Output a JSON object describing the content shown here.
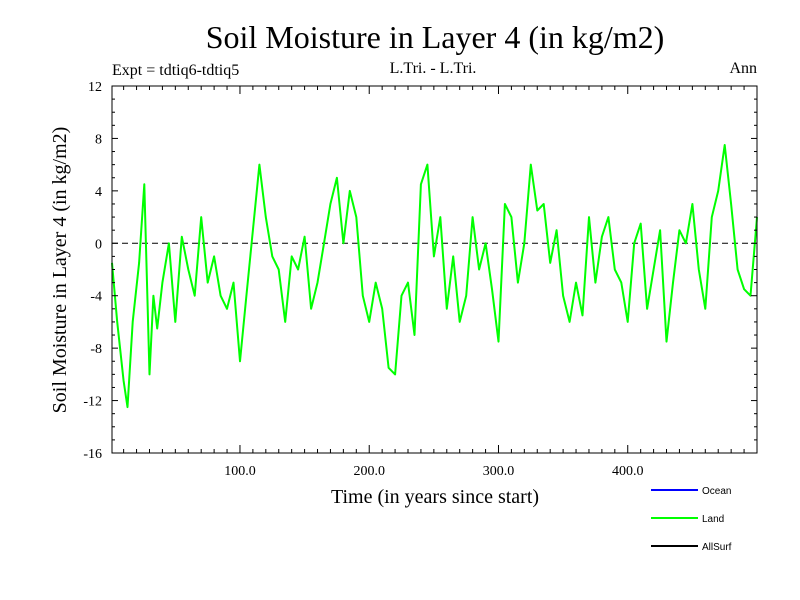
{
  "chart_data": {
    "type": "line",
    "title": "Soil Moisture in Layer 4 (in kg/m2)",
    "subtitle_left": "Expt = tdtiq6-tdtiq5",
    "subtitle_center": "L.Tri. - L.Tri.",
    "subtitle_right": "Ann",
    "xlabel": "Time (in years since start)",
    "ylabel": "Soil Moisture in Layer 4 (in kg/m2)",
    "xlim": [
      1,
      500
    ],
    "ylim": [
      -16,
      12
    ],
    "x_ticks": [
      100,
      200,
      300,
      400
    ],
    "x_tick_labels": [
      "100.0",
      "200.0",
      "300.0",
      "400.0"
    ],
    "y_ticks": [
      -16,
      -12,
      -8,
      -4,
      0,
      4,
      8,
      12
    ],
    "y_tick_labels": [
      "-16",
      "-12",
      "-8",
      "-4",
      "0",
      "4",
      "8",
      "12"
    ],
    "zero_line": true,
    "grid": false,
    "legend": [
      {
        "name": "Ocean",
        "color": "#0000ff"
      },
      {
        "name": "Land",
        "color": "#00ff00"
      },
      {
        "name": "AllSurf",
        "color": "#000000"
      }
    ],
    "series": [
      {
        "name": "Land",
        "color": "#00ff00",
        "x": [
          1,
          5,
          10,
          13,
          17,
          22,
          26,
          30,
          33,
          36,
          40,
          45,
          50,
          55,
          60,
          65,
          70,
          75,
          80,
          85,
          90,
          95,
          100,
          105,
          110,
          115,
          120,
          125,
          130,
          135,
          140,
          145,
          150,
          155,
          160,
          165,
          170,
          175,
          180,
          185,
          190,
          195,
          200,
          205,
          210,
          215,
          220,
          225,
          230,
          235,
          240,
          245,
          250,
          255,
          260,
          265,
          270,
          275,
          280,
          285,
          290,
          295,
          300,
          305,
          310,
          315,
          320,
          325,
          330,
          335,
          340,
          345,
          350,
          355,
          360,
          365,
          370,
          375,
          380,
          385,
          390,
          395,
          400,
          405,
          410,
          415,
          420,
          425,
          430,
          435,
          440,
          445,
          450,
          455,
          460,
          465,
          470,
          475,
          480,
          485,
          490,
          495,
          500
        ],
        "values": [
          -1.5,
          -6.0,
          -10.5,
          -12.5,
          -6.0,
          -1.5,
          4.5,
          -10.0,
          -4.0,
          -6.5,
          -3.0,
          0.0,
          -6.0,
          0.5,
          -2.0,
          -4.0,
          2.0,
          -3.0,
          -1.0,
          -4.0,
          -5.0,
          -3.0,
          -9.0,
          -4.0,
          1.0,
          6.0,
          2.0,
          -1.0,
          -2.0,
          -6.0,
          -1.0,
          -2.0,
          0.5,
          -5.0,
          -3.0,
          0.0,
          3.0,
          5.0,
          0.0,
          4.0,
          2.0,
          -4.0,
          -6.0,
          -3.0,
          -5.0,
          -9.5,
          -10.0,
          -4.0,
          -3.0,
          -7.0,
          4.5,
          6.0,
          -1.0,
          2.0,
          -5.0,
          -1.0,
          -6.0,
          -4.0,
          2.0,
          -2.0,
          0.0,
          -3.5,
          -7.5,
          3.0,
          2.0,
          -3.0,
          0.0,
          6.0,
          2.5,
          3.0,
          -1.5,
          1.0,
          -4.0,
          -6.0,
          -3.0,
          -5.5,
          2.0,
          -3.0,
          0.5,
          2.0,
          -2.0,
          -3.0,
          -6.0,
          0.0,
          1.5,
          -5.0,
          -2.0,
          1.0,
          -7.5,
          -3.0,
          1.0,
          0.0,
          3.0,
          -2.0,
          -5.0,
          2.0,
          4.0,
          7.5,
          3.0,
          -2.0,
          -3.5,
          -4.0,
          2.0
        ]
      }
    ]
  }
}
